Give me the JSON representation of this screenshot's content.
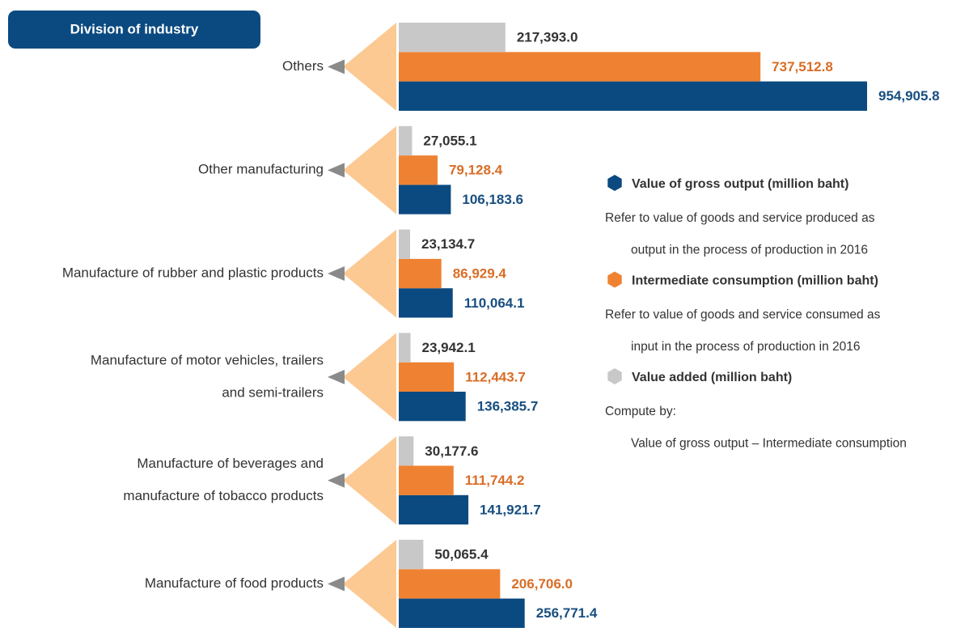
{
  "chart_data": {
    "type": "bar",
    "orientation": "horizontal",
    "title": "Division of industry",
    "categories": [
      [
        "Others"
      ],
      [
        "Other manufacturing"
      ],
      [
        "Manufacture of rubber and plastic products"
      ],
      [
        "Manufacture of motor vehicles, trailers",
        "and semi-trailers"
      ],
      [
        "Manufacture of beverages and",
        "manufacture of tobacco products"
      ],
      [
        "Manufacture of food products"
      ]
    ],
    "series": [
      {
        "name": "Value of gross output (million baht)",
        "color": "#0b4a80",
        "label_color": "#174e80",
        "description": [
          "Refer to value of goods and service produced as",
          "output in the process of production in 2016"
        ],
        "values": [
          954905.8,
          106183.6,
          110064.1,
          136385.7,
          141921.7,
          256771.4
        ],
        "value_labels": [
          "954,905.8",
          "106,183.6",
          "110,064.1",
          "136,385.7",
          "141,921.7",
          "256,771.4"
        ]
      },
      {
        "name": "Intermediate consumption (million baht)",
        "color": "#ef8232",
        "label_color": "#d96d26",
        "description": [
          "Refer to value of goods and service consumed as",
          "input in the process of production in 2016"
        ],
        "values": [
          737512.8,
          79128.4,
          86929.4,
          112443.7,
          111744.2,
          206706.0
        ],
        "value_labels": [
          "737,512.8",
          "79,128.4",
          "86,929.4",
          "112,443.7",
          "111,744.2",
          "206,706.0"
        ]
      },
      {
        "name": "Value added (million baht)",
        "color": "#c8c8c8",
        "label_color": "#333333",
        "description": [
          "Compute by:",
          "Value of gross output – Intermediate consumption"
        ],
        "values": [
          217393.0,
          27055.1,
          23134.7,
          23942.1,
          30177.6,
          50065.4
        ],
        "value_labels": [
          "217,393.0",
          "27,055.1",
          "23,134.7",
          "23,942.1",
          "30,177.6",
          "50,065.4"
        ]
      }
    ]
  }
}
